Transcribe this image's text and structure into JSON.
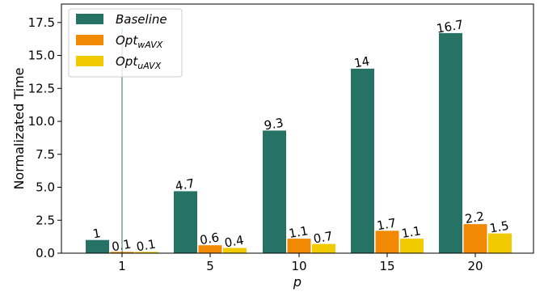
{
  "chart_data": {
    "type": "bar",
    "xlabel": "p",
    "ylabel": "Normalizated Time",
    "ylim": [
      0,
      18.9
    ],
    "yticks": [
      "0.0",
      "2.5",
      "5.0",
      "7.5",
      "10.0",
      "12.5",
      "15.0",
      "17.5"
    ],
    "ytick_values": [
      0,
      2.5,
      5,
      7.5,
      10,
      12.5,
      15,
      17.5
    ],
    "categories": [
      "1",
      "5",
      "10",
      "15",
      "20"
    ],
    "grid": false,
    "legend_position": "top-left",
    "series": [
      {
        "name": "Baseline",
        "name_sub": "",
        "color": "#267365",
        "values": [
          1,
          4.7,
          9.3,
          14,
          16.7
        ],
        "labels": [
          "1",
          "4.7",
          "9.3",
          "14",
          "16.7"
        ]
      },
      {
        "name": "Opt",
        "name_sub": "wAVX",
        "color": "#F18904",
        "values": [
          0.1,
          0.6,
          1.1,
          1.7,
          2.2
        ],
        "labels": [
          "0.1",
          "0.6",
          "1.1",
          "1.7",
          "2.2"
        ]
      },
      {
        "name": "Opt",
        "name_sub": "uAVX",
        "color": "#F2CA00",
        "values": [
          0.1,
          0.4,
          0.7,
          1.1,
          1.5
        ],
        "labels": [
          "0.1",
          "0.4",
          "0.7",
          "1.1",
          "1.5"
        ]
      }
    ]
  }
}
